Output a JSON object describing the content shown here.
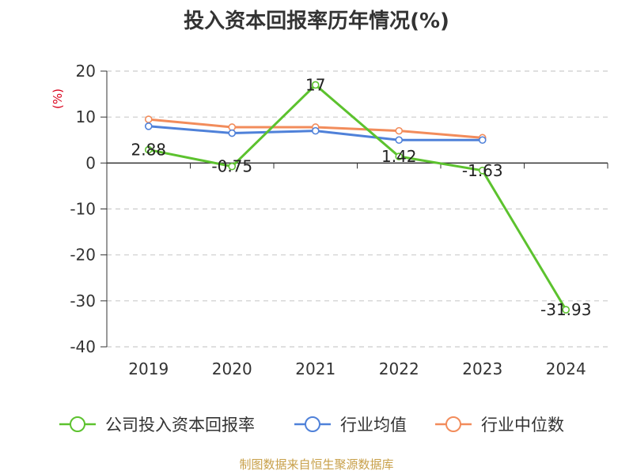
{
  "title": "投入资本回报率历年情况(%)",
  "source": "制图数据来自恒生聚源数据库",
  "colors": {
    "series_company": "#5cc22e",
    "series_industry_avg": "#4f81d9",
    "series_industry_median": "#f28c5b",
    "ylabel": "#d9001b",
    "source": "#c8a04a"
  },
  "chart_data": {
    "type": "line",
    "title": "投入资本回报率历年情况(%)",
    "ylabel": "(%)",
    "xlabel": "",
    "categories": [
      "2019",
      "2020",
      "2021",
      "2022",
      "2023",
      "2024"
    ],
    "ylim": [
      -40,
      20
    ],
    "yticks": [
      20,
      10,
      0,
      -10,
      -20,
      -30,
      -40
    ],
    "grid": true,
    "legend_position": "bottom",
    "series": [
      {
        "name": "公司投入资本回报率",
        "color": "#5cc22e",
        "values": [
          2.88,
          -0.75,
          17,
          1.42,
          -1.63,
          -31.93
        ],
        "labels": [
          "2.88",
          "-0.75",
          "17",
          "1.42",
          "-1.63",
          "-31.93"
        ]
      },
      {
        "name": "行业均值",
        "color": "#4f81d9",
        "values": [
          8.0,
          6.5,
          7.0,
          5.0,
          5.0,
          null
        ]
      },
      {
        "name": "行业中位数",
        "color": "#f28c5b",
        "values": [
          9.5,
          7.8,
          7.8,
          7.0,
          5.5,
          null
        ]
      }
    ]
  }
}
